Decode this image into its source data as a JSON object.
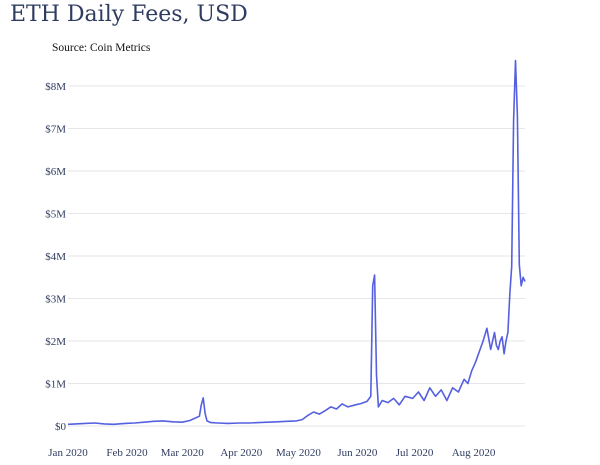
{
  "chart_data": {
    "type": "line",
    "title": "ETH Daily Fees, USD",
    "subtitle": "Source: Coin Metrics",
    "xlabel": "",
    "ylabel": "",
    "x_ticks": [
      "Jan 2020",
      "Feb 2020",
      "Mar 2020",
      "Apr 2020",
      "May 2020",
      "Jun 2020",
      "Jul 2020",
      "Aug 2020"
    ],
    "y_ticks": [
      "$0",
      "$1M",
      "$2M",
      "$3M",
      "$4M",
      "$5M",
      "$6M",
      "$7M",
      "$8M"
    ],
    "ylim": [
      0,
      8800000
    ],
    "xlim": [
      "2020-01-01",
      "2020-08-28"
    ],
    "grid": true,
    "color": "#5560e0",
    "series": [
      {
        "x": [
          "2020-01-01",
          "2020-01-05",
          "2020-01-10",
          "2020-01-15",
          "2020-01-20",
          "2020-01-25",
          "2020-01-31",
          "2020-02-05",
          "2020-02-10",
          "2020-02-15",
          "2020-02-20",
          "2020-02-25",
          "2020-03-01",
          "2020-03-05",
          "2020-03-10",
          "2020-03-11",
          "2020-03-12",
          "2020-03-13",
          "2020-03-14",
          "2020-03-16",
          "2020-03-20",
          "2020-03-25",
          "2020-03-31",
          "2020-04-05",
          "2020-04-10",
          "2020-04-15",
          "2020-04-20",
          "2020-04-25",
          "2020-04-30",
          "2020-05-03",
          "2020-05-06",
          "2020-05-09",
          "2020-05-12",
          "2020-05-15",
          "2020-05-18",
          "2020-05-21",
          "2020-05-24",
          "2020-05-27",
          "2020-05-31",
          "2020-06-03",
          "2020-06-06",
          "2020-06-08",
          "2020-06-09",
          "2020-06-10",
          "2020-06-11",
          "2020-06-12",
          "2020-06-14",
          "2020-06-17",
          "2020-06-20",
          "2020-06-23",
          "2020-06-26",
          "2020-06-30",
          "2020-07-03",
          "2020-07-06",
          "2020-07-09",
          "2020-07-12",
          "2020-07-15",
          "2020-07-18",
          "2020-07-21",
          "2020-07-24",
          "2020-07-27",
          "2020-07-29",
          "2020-07-31",
          "2020-08-02",
          "2020-08-04",
          "2020-08-06",
          "2020-08-08",
          "2020-08-10",
          "2020-08-12",
          "2020-08-13",
          "2020-08-14",
          "2020-08-15",
          "2020-08-16",
          "2020-08-17",
          "2020-08-18",
          "2020-08-19",
          "2020-08-20",
          "2020-08-21",
          "2020-08-22",
          "2020-08-23",
          "2020-08-24",
          "2020-08-25",
          "2020-08-26",
          "2020-08-27",
          "2020-08-28"
        ],
        "y": [
          40000,
          50000,
          60000,
          70000,
          50000,
          40000,
          60000,
          70000,
          90000,
          110000,
          120000,
          100000,
          90000,
          130000,
          230000,
          500000,
          660000,
          300000,
          120000,
          80000,
          70000,
          60000,
          70000,
          70000,
          80000,
          90000,
          100000,
          110000,
          120000,
          150000,
          250000,
          330000,
          280000,
          360000,
          450000,
          400000,
          520000,
          450000,
          500000,
          530000,
          580000,
          700000,
          3300000,
          3550000,
          1200000,
          450000,
          600000,
          550000,
          650000,
          500000,
          700000,
          650000,
          800000,
          600000,
          900000,
          700000,
          850000,
          600000,
          900000,
          800000,
          1100000,
          1000000,
          1300000,
          1500000,
          1750000,
          2000000,
          2300000,
          1800000,
          2200000,
          1900000,
          1800000,
          2000000,
          2100000,
          1700000,
          2000000,
          2200000,
          3100000,
          3750000,
          7200000,
          8600000,
          7300000,
          3800000,
          3300000,
          3500000,
          3400000
        ]
      }
    ]
  }
}
